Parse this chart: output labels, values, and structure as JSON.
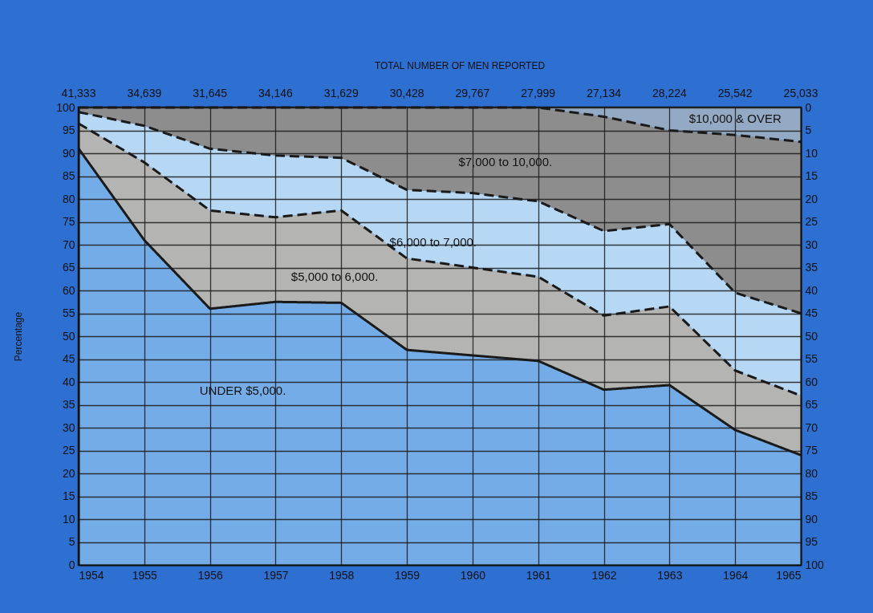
{
  "chart_data": {
    "type": "area",
    "stacked": true,
    "ylabel": "Percentage",
    "annotations": [
      "TOTAL NUMBER OF MEN REPORTED",
      "41,333",
      "34,639",
      "31,645",
      "34,146",
      "31,629",
      "30,428",
      "29,767",
      "27,999",
      "27,134",
      "28,224",
      "25,542",
      "25,033"
    ],
    "x": [
      1954,
      1955,
      1956,
      1957,
      1958,
      1959,
      1960,
      1961,
      1962,
      1963,
      1964,
      1965
    ],
    "xlim": [
      1954,
      1965
    ],
    "xticks": [
      1954,
      1955,
      1956,
      1957,
      1958,
      1959,
      1960,
      1961,
      1962,
      1963,
      1964,
      1965
    ],
    "ylim": [
      0,
      100
    ],
    "yticks": [
      0,
      5,
      10,
      15,
      20,
      25,
      30,
      35,
      40,
      45,
      50,
      55,
      60,
      65,
      70,
      75,
      80,
      85,
      90,
      95,
      100
    ],
    "y2lim": [
      100,
      0
    ],
    "y2ticks": [
      0,
      5,
      10,
      15,
      20,
      25,
      30,
      35,
      40,
      45,
      50,
      55,
      60,
      65,
      70,
      75,
      80,
      85,
      90,
      95,
      100
    ],
    "grid": true,
    "series": [
      {
        "name": "UNDER $5,000.",
        "color": "#74ace8",
        "line_style": "solid",
        "values": [
          91,
          71,
          56,
          57.5,
          57.3,
          47,
          45.8,
          44.6,
          38.3,
          39.3,
          29.5,
          24
        ]
      },
      {
        "name": "$5,000 to 6,000.",
        "color": "#b4b4b2",
        "line_style": "dashed",
        "values": [
          5.5,
          17,
          21.5,
          18.5,
          20.2,
          20,
          19.2,
          18.4,
          16.2,
          17.2,
          13,
          13
        ]
      },
      {
        "name": "$6,000 to 7,000.",
        "color": "#b6d8f4",
        "line_style": "dashed",
        "values": [
          2.5,
          8,
          13.5,
          13.5,
          11.5,
          15,
          16.3,
          16.5,
          18.5,
          18,
          17,
          18
        ]
      },
      {
        "name": "$7,000 to 10,000.",
        "color": "#8d8d8d",
        "line_style": "dashed",
        "values": [
          1,
          4,
          9,
          10.5,
          11,
          18,
          18.7,
          20.5,
          25,
          20.5,
          34.5,
          37.5
        ]
      },
      {
        "name": "$10,000 & OVER",
        "color": "#94aac4",
        "values": [
          0,
          0,
          0,
          0,
          0,
          0,
          0,
          0,
          2,
          5,
          6,
          7.5
        ]
      }
    ]
  }
}
